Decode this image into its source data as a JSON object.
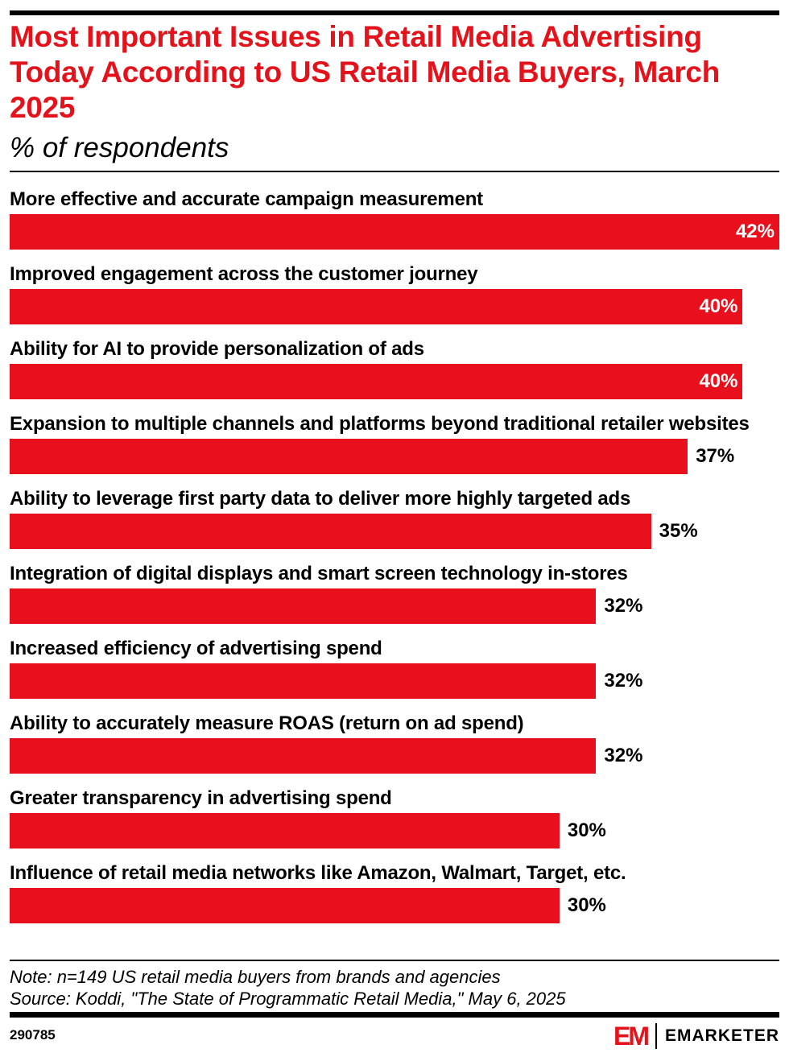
{
  "title": "Most Important Issues in Retail Media Advertising Today According to US Retail Media Buyers, March 2025",
  "subtitle": "% of respondents",
  "chart_data": {
    "type": "bar",
    "orientation": "horizontal",
    "title": "Most Important Issues in Retail Media Advertising Today According to US Retail Media Buyers, March 2025",
    "subtitle": "% of respondents",
    "categories": [
      "More effective and accurate campaign measurement",
      "Improved engagement across the customer journey",
      "Ability for AI to provide personalization of ads",
      "Expansion to multiple channels and platforms beyond traditional retailer websites",
      "Ability to leverage first party data to deliver more highly targeted ads",
      "Integration of digital displays and smart screen technology in-stores",
      "Increased efficiency of advertising spend",
      "Ability to accurately measure ROAS (return on ad spend)",
      "Greater transparency in advertising spend",
      "Influence of retail media networks like Amazon, Walmart, Target, etc."
    ],
    "values": [
      42,
      40,
      40,
      37,
      35,
      32,
      32,
      32,
      30,
      30
    ],
    "value_labels": [
      "42%",
      "40%",
      "40%",
      "37%",
      "35%",
      "32%",
      "32%",
      "32%",
      "30%",
      "30%"
    ],
    "xlim": [
      0,
      42
    ],
    "grid": false,
    "bar_color": "#e8101c",
    "title_color": "#e3121b"
  },
  "footer": {
    "note": "Note: n=149 US retail media buyers from brands and agencies",
    "source": "Source: Koddi, \"The State of Programmatic Retail Media,\" May 6, 2025",
    "chart_id": "290785",
    "logo_mark": "EM",
    "logo_text": "EMARKETER"
  }
}
